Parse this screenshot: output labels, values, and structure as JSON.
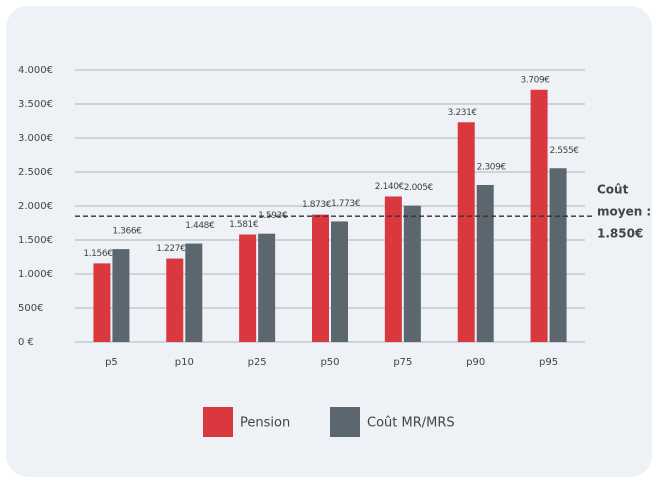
{
  "chart_data": {
    "type": "bar",
    "categories": [
      "p5",
      "p10",
      "p25",
      "p50",
      "p75",
      "p90",
      "p95"
    ],
    "series": [
      {
        "name": "Pension",
        "color": "#d9383f",
        "values": [
          1156,
          1227,
          1581,
          1873,
          2140,
          3231,
          3709
        ],
        "value_labels": [
          "1.156€",
          "1.227€",
          "1.581€",
          "1.873€",
          "2.140€",
          "3.231€",
          "3.709€"
        ]
      },
      {
        "name": "Coût MR/MRS",
        "color": "#5b666e",
        "values": [
          1366,
          1448,
          1593,
          1773,
          2005,
          2309,
          2555
        ],
        "value_labels": [
          "1.366€",
          "1.448€",
          "1.593€",
          "1.773€",
          "2.005€",
          "2.309€",
          "2.555€"
        ]
      }
    ],
    "ylim": [
      0,
      4000
    ],
    "yticks": [
      {
        "value": 0,
        "label": "0 €"
      },
      {
        "value": 500,
        "label": "500€"
      },
      {
        "value": 1000,
        "label": "1.000€"
      },
      {
        "value": 1500,
        "label": "1.500€"
      },
      {
        "value": 2000,
        "label": "2.000€"
      },
      {
        "value": 2500,
        "label": "2.500€"
      },
      {
        "value": 3000,
        "label": "3.000€"
      },
      {
        "value": 3500,
        "label": "3.500€"
      },
      {
        "value": 4000,
        "label": "4.000€"
      }
    ],
    "grid": true,
    "reference_line": {
      "value": 1850,
      "label_lines": [
        "Coût",
        "moyen :",
        "1.850€"
      ]
    },
    "legend": "bottom"
  }
}
